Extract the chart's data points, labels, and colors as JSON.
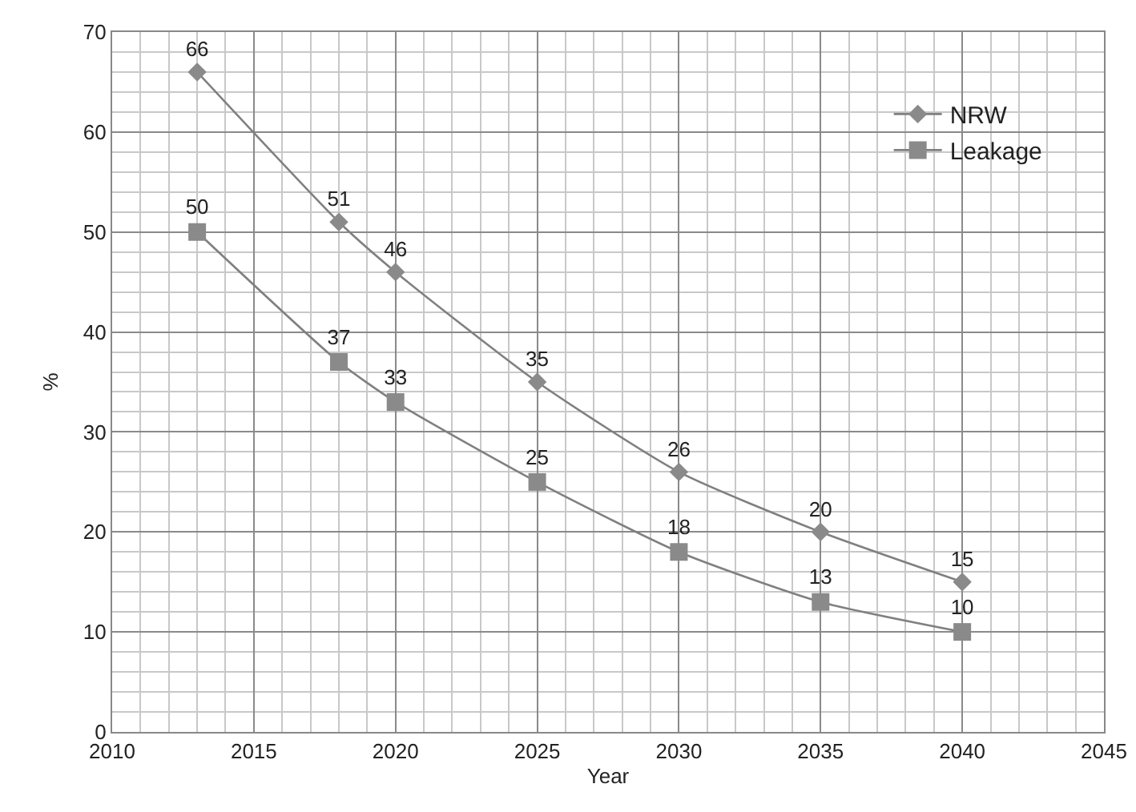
{
  "chart_data": {
    "type": "line",
    "xlabel": "Year",
    "ylabel": "%",
    "x": [
      2013,
      2018,
      2020,
      2025,
      2030,
      2035,
      2040
    ],
    "series": [
      {
        "name": "NRW",
        "color": "#8a8a8a",
        "marker": "diamond",
        "values": [
          66,
          51,
          46,
          35,
          26,
          20,
          15
        ]
      },
      {
        "name": "Leakage",
        "color": "#8a8a8a",
        "marker": "square",
        "values": [
          50,
          37,
          33,
          25,
          18,
          13,
          10
        ]
      }
    ],
    "xlim": [
      2010,
      2045
    ],
    "xticks": [
      2010,
      2015,
      2020,
      2025,
      2030,
      2035,
      2040,
      2045
    ],
    "ylim": [
      0,
      70
    ],
    "yticks": [
      0,
      10,
      20,
      30,
      40,
      50,
      60,
      70
    ],
    "grid": true,
    "legend": "top right",
    "data_labels": true,
    "line_style": "solid"
  }
}
